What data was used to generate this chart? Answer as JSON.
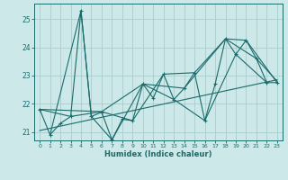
{
  "title": "",
  "xlabel": "Humidex (Indice chaleur)",
  "bg_color": "#cce8e8",
  "grid_color": "#aacccc",
  "line_color": "#1a6b6b",
  "xlim": [
    -0.5,
    23.5
  ],
  "ylim": [
    20.7,
    25.55
  ],
  "yticks": [
    21,
    22,
    23,
    24,
    25
  ],
  "xticks": [
    0,
    1,
    2,
    3,
    4,
    5,
    6,
    7,
    8,
    9,
    10,
    11,
    12,
    13,
    14,
    15,
    16,
    17,
    18,
    19,
    20,
    21,
    22,
    23
  ],
  "main_series": [
    [
      0,
      21.8
    ],
    [
      1,
      20.9
    ],
    [
      2,
      21.3
    ],
    [
      3,
      21.55
    ],
    [
      4,
      25.3
    ],
    [
      5,
      21.55
    ],
    [
      6,
      21.7
    ],
    [
      7,
      20.72
    ],
    [
      8,
      21.45
    ],
    [
      9,
      21.4
    ],
    [
      10,
      22.7
    ],
    [
      11,
      22.2
    ],
    [
      12,
      23.05
    ],
    [
      13,
      22.15
    ],
    [
      14,
      22.55
    ],
    [
      15,
      23.1
    ],
    [
      16,
      21.4
    ],
    [
      17,
      22.7
    ],
    [
      18,
      24.3
    ],
    [
      19,
      23.75
    ],
    [
      20,
      24.25
    ],
    [
      21,
      23.6
    ],
    [
      22,
      22.75
    ],
    [
      23,
      22.75
    ]
  ],
  "trend_line1": [
    [
      0,
      21.8
    ],
    [
      6,
      21.72
    ],
    [
      10,
      22.7
    ],
    [
      14,
      22.55
    ],
    [
      18,
      24.3
    ],
    [
      21,
      23.6
    ],
    [
      23,
      22.8
    ]
  ],
  "trend_line2": [
    [
      0,
      21.8
    ],
    [
      3,
      21.55
    ],
    [
      6,
      21.72
    ],
    [
      9,
      21.4
    ],
    [
      12,
      23.05
    ],
    [
      15,
      23.1
    ],
    [
      18,
      24.3
    ],
    [
      20,
      24.25
    ],
    [
      23,
      22.75
    ]
  ],
  "trend_line3": [
    [
      1,
      20.9
    ],
    [
      4,
      25.3
    ],
    [
      5,
      21.55
    ],
    [
      7,
      20.72
    ],
    [
      10,
      22.7
    ],
    [
      13,
      22.15
    ],
    [
      16,
      21.4
    ],
    [
      19,
      23.75
    ],
    [
      22,
      22.75
    ]
  ],
  "linear_trend": [
    [
      0,
      21.05
    ],
    [
      23,
      22.85
    ]
  ]
}
